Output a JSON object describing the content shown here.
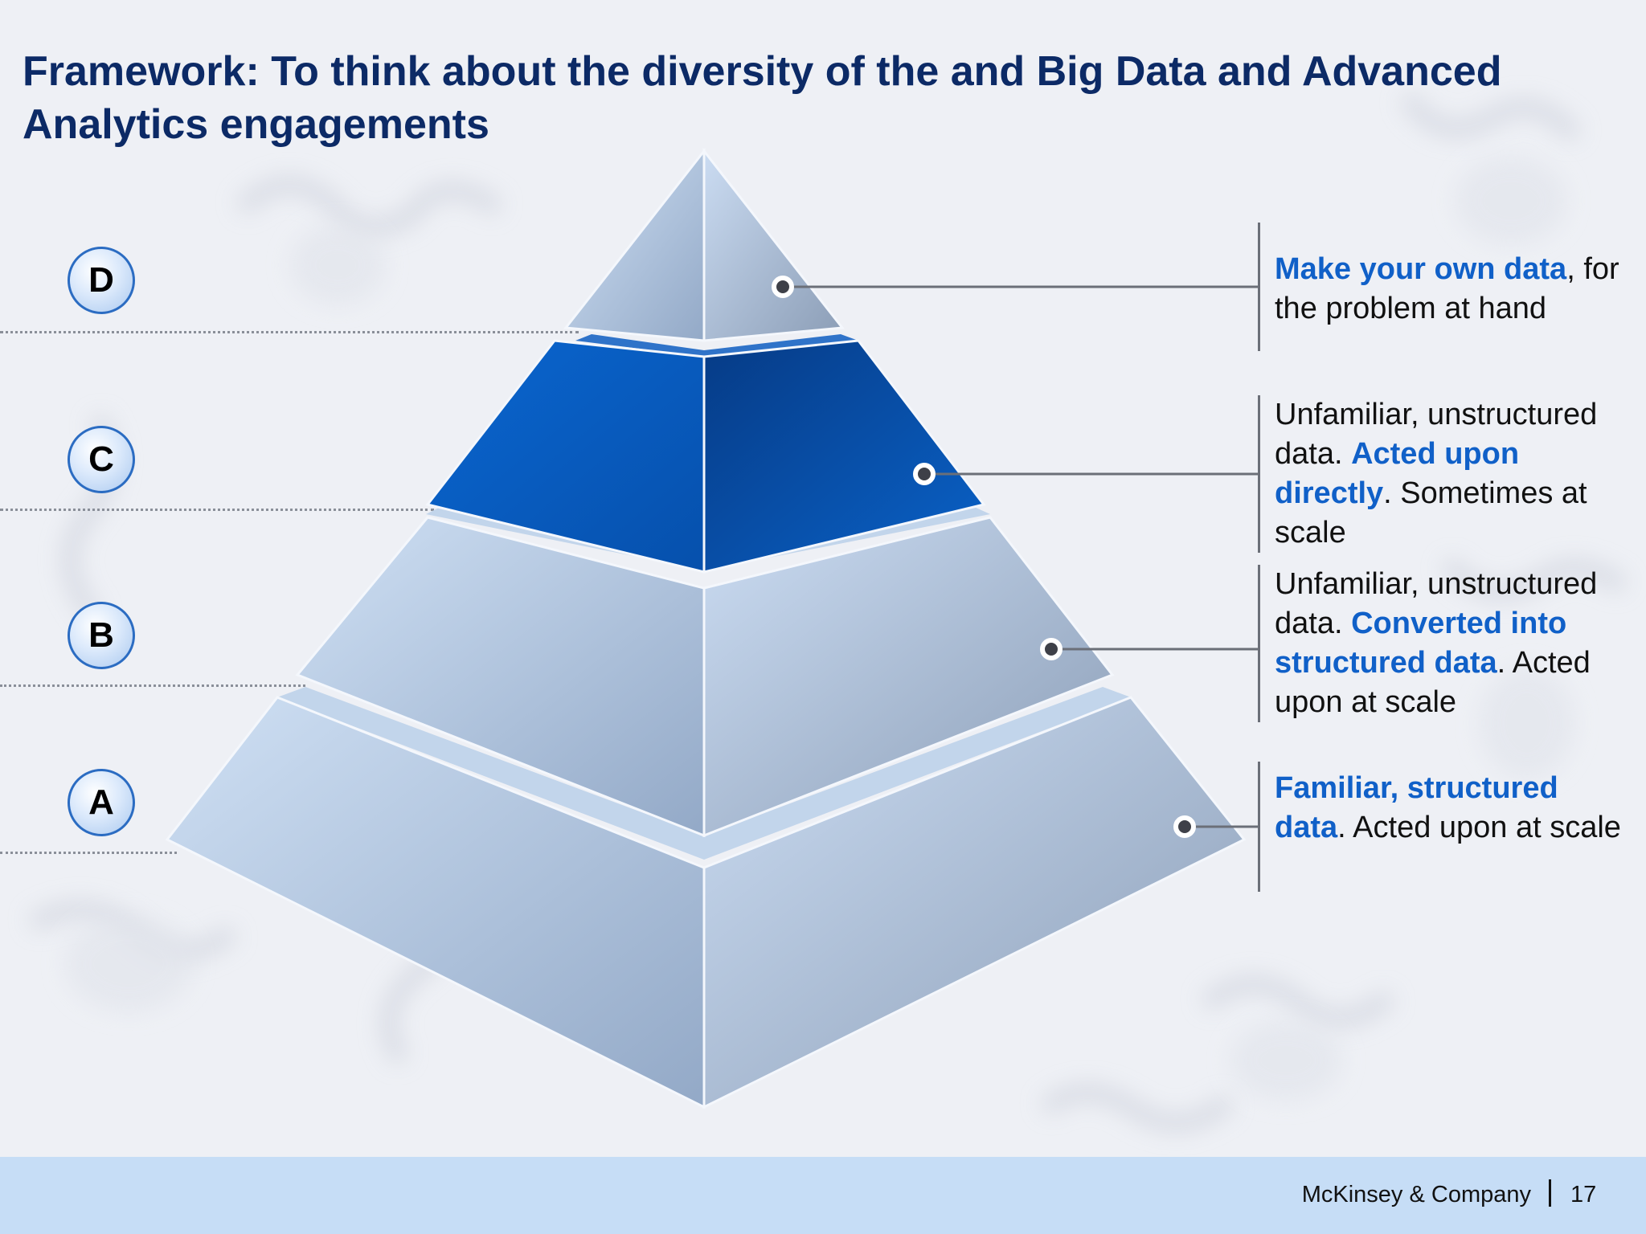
{
  "title": "Framework: To think about the diversity of the and Big Data and Advanced Analytics engagements",
  "levels": [
    {
      "id": "D",
      "text_before": "",
      "highlight": "Make your own data",
      "text_after": ", for the problem at hand",
      "highlight2": "",
      "text_after2": ""
    },
    {
      "id": "C",
      "text_before": "Unfamiliar, unstructured data. ",
      "highlight": "Acted upon directly",
      "text_after": ". Sometimes at scale",
      "highlight2": "",
      "text_after2": ""
    },
    {
      "id": "B",
      "text_before": "Unfamiliar, unstructured data. ",
      "highlight": "Converted into structured data",
      "text_after": ". Acted upon at scale",
      "highlight2": "",
      "text_after2": ""
    },
    {
      "id": "A",
      "text_before": "",
      "highlight": "Familiar, structured data",
      "text_after": ". Acted upon at scale",
      "highlight2": "",
      "text_after2": ""
    }
  ],
  "footer": {
    "company": "McKinsey & Company",
    "page": "17"
  },
  "colors": {
    "title": "#0c2a66",
    "highlight": "#1060c8",
    "tier_active": "#0a5fc4",
    "tier_light": "#b7cde6",
    "footer_band": "#c6ddf6"
  }
}
